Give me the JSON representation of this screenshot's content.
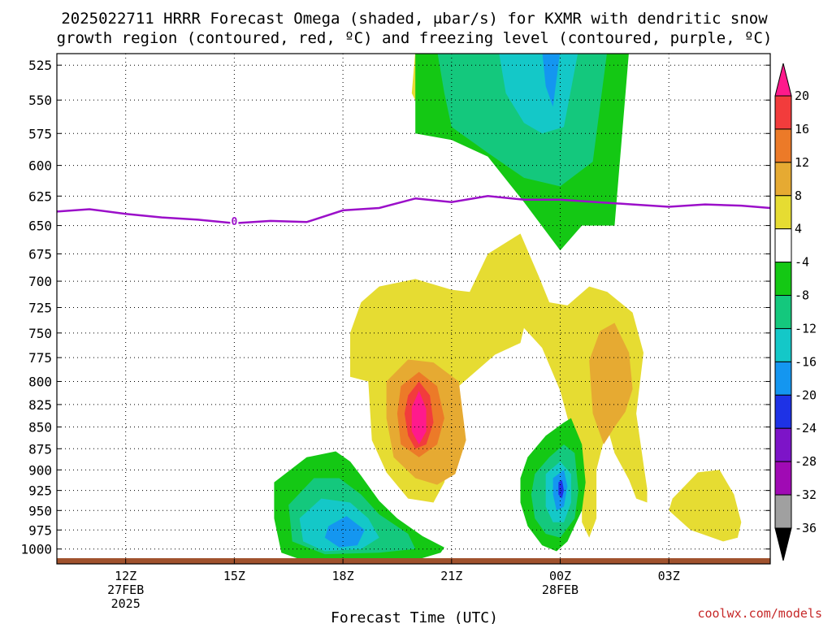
{
  "title_line1": "2025022711 HRRR Forecast Omega (shaded, μbar/s) for KXMR with dendritic snow",
  "title_line2": "growth region (contoured, red, ºC) and freezing level (contoured, purple, ºC)",
  "credit": "coolwx.com/models",
  "chart_data": {
    "type": "contour",
    "title": "2025022711 HRRR Forecast Omega (shaded, μbar/s) for KXMR with dendritic snow growth region (contoured, red, ºC) and freezing level (contoured, purple, ºC)",
    "xlabel": "Forecast Time (UTC)",
    "ylabel": "",
    "y_scale": "log",
    "ylim": [
      1020,
      517
    ],
    "xlim": [
      10.1,
      29.8
    ],
    "y_ticks": [
      525,
      550,
      575,
      600,
      625,
      650,
      675,
      700,
      725,
      750,
      775,
      800,
      825,
      850,
      875,
      900,
      925,
      950,
      975,
      1000
    ],
    "x_ticks": [
      {
        "hour": 12,
        "label": "12Z",
        "sub1": "27FEB",
        "sub2": "2025"
      },
      {
        "hour": 15,
        "label": "15Z",
        "sub1": "",
        "sub2": ""
      },
      {
        "hour": 18,
        "label": "18Z",
        "sub1": "",
        "sub2": ""
      },
      {
        "hour": 21,
        "label": "21Z",
        "sub1": "",
        "sub2": ""
      },
      {
        "hour": 24,
        "label": "00Z",
        "sub1": "28FEB",
        "sub2": ""
      },
      {
        "hour": 27,
        "label": "03Z",
        "sub1": "",
        "sub2": ""
      }
    ],
    "grid": true,
    "colorbar": {
      "labels": [
        "20",
        "16",
        "12",
        "8",
        "4",
        "-4",
        "-8",
        "-12",
        "-16",
        "-20",
        "-24",
        "-28",
        "-32",
        "-36"
      ],
      "colors": [
        "#ff1a8c",
        "#f23c3c",
        "#ec7a28",
        "#e6aa32",
        "#e6dc32",
        "#ffffff",
        "#14c814",
        "#14c87d",
        "#14c8c8",
        "#1496f0",
        "#1e32e6",
        "#7d14c8",
        "#a00ab4",
        "#a0a0a0",
        "#000000"
      ]
    },
    "omega_regions": [
      {
        "level": 4,
        "color": "#e6dc32",
        "points": [
          [
            20.0,
            515
          ],
          [
            20.5,
            515
          ],
          [
            20.2,
            561
          ],
          [
            19.9,
            545
          ]
        ]
      },
      {
        "level": -4,
        "color": "#14c814",
        "points": [
          [
            20.0,
            515
          ],
          [
            25.9,
            515
          ],
          [
            25.5,
            650
          ],
          [
            24.6,
            650
          ],
          [
            24.0,
            672
          ],
          [
            23.0,
            630
          ],
          [
            22.6,
            615
          ],
          [
            22.0,
            593
          ],
          [
            21.0,
            580
          ],
          [
            20.0,
            575
          ]
        ]
      },
      {
        "level": -8,
        "color": "#14c87d",
        "points": [
          [
            20.6,
            515
          ],
          [
            25.3,
            515
          ],
          [
            24.9,
            597
          ],
          [
            24.0,
            617
          ],
          [
            23.0,
            610
          ],
          [
            22.0,
            590
          ],
          [
            21.0,
            570
          ],
          [
            20.8,
            545
          ]
        ]
      },
      {
        "level": -12,
        "color": "#14c8c8",
        "points": [
          [
            22.3,
            515
          ],
          [
            24.5,
            515
          ],
          [
            24.1,
            570
          ],
          [
            23.5,
            575
          ],
          [
            23.0,
            567
          ],
          [
            22.5,
            545
          ]
        ]
      },
      {
        "level": -16,
        "color": "#1496f0",
        "points": [
          [
            23.5,
            515
          ],
          [
            24.0,
            515
          ],
          [
            23.8,
            555
          ],
          [
            23.6,
            540
          ]
        ]
      },
      {
        "level": 4,
        "color": "#e6dc32",
        "points": [
          [
            19.0,
            705
          ],
          [
            20.0,
            698
          ],
          [
            21.0,
            708
          ],
          [
            21.5,
            710
          ],
          [
            22.0,
            675
          ],
          [
            22.9,
            657
          ],
          [
            23.4,
            695
          ],
          [
            23.7,
            720
          ],
          [
            24.2,
            723
          ],
          [
            24.8,
            705
          ],
          [
            25.3,
            710
          ],
          [
            26.0,
            730
          ],
          [
            26.3,
            770
          ],
          [
            26.1,
            835
          ],
          [
            26.3,
            893
          ],
          [
            26.4,
            923
          ],
          [
            26.4,
            940
          ],
          [
            26.1,
            935
          ],
          [
            25.9,
            912
          ],
          [
            25.5,
            880
          ],
          [
            25.3,
            850
          ],
          [
            25.0,
            900
          ],
          [
            25.0,
            960
          ],
          [
            24.8,
            985
          ],
          [
            24.6,
            965
          ],
          [
            24.6,
            900
          ],
          [
            24.4,
            870
          ],
          [
            24.0,
            810
          ],
          [
            23.5,
            765
          ],
          [
            23.0,
            745
          ],
          [
            22.9,
            760
          ],
          [
            22.2,
            772
          ],
          [
            21.8,
            785
          ],
          [
            21.2,
            805
          ],
          [
            21.0,
            872
          ],
          [
            20.8,
            915
          ],
          [
            20.5,
            940
          ],
          [
            19.8,
            935
          ],
          [
            19.2,
            903
          ],
          [
            18.8,
            865
          ],
          [
            18.7,
            800
          ],
          [
            18.2,
            795
          ],
          [
            18.2,
            750
          ],
          [
            18.5,
            720
          ]
        ]
      },
      {
        "level": 4,
        "color": "#e6dc32",
        "points": [
          [
            27.1,
            935
          ],
          [
            27.8,
            903
          ],
          [
            28.4,
            900
          ],
          [
            28.8,
            930
          ],
          [
            29.0,
            965
          ],
          [
            28.9,
            985
          ],
          [
            28.5,
            990
          ],
          [
            27.6,
            975
          ],
          [
            27.0,
            950
          ]
        ]
      },
      {
        "level": 8,
        "color": "#e6aa32",
        "points": [
          [
            24.8,
            778
          ],
          [
            25.1,
            748
          ],
          [
            25.5,
            740
          ],
          [
            25.9,
            770
          ],
          [
            26.0,
            808
          ],
          [
            25.8,
            833
          ],
          [
            25.5,
            850
          ],
          [
            25.2,
            870
          ],
          [
            24.9,
            835
          ]
        ]
      },
      {
        "level": 8,
        "color": "#e6aa32",
        "points": [
          [
            19.2,
            800
          ],
          [
            19.8,
            777
          ],
          [
            20.5,
            780
          ],
          [
            21.2,
            800
          ],
          [
            21.4,
            865
          ],
          [
            21.1,
            905
          ],
          [
            20.6,
            918
          ],
          [
            20.0,
            910
          ],
          [
            19.4,
            885
          ],
          [
            19.2,
            840
          ]
        ]
      },
      {
        "level": 12,
        "color": "#ec7a28",
        "points": [
          [
            19.6,
            805
          ],
          [
            20.1,
            790
          ],
          [
            20.6,
            805
          ],
          [
            20.8,
            840
          ],
          [
            20.6,
            870
          ],
          [
            20.1,
            885
          ],
          [
            19.6,
            870
          ],
          [
            19.5,
            835
          ]
        ]
      },
      {
        "level": 16,
        "color": "#f23c3c",
        "points": [
          [
            19.8,
            815
          ],
          [
            20.1,
            800
          ],
          [
            20.4,
            815
          ],
          [
            20.5,
            845
          ],
          [
            20.3,
            870
          ],
          [
            20.0,
            875
          ],
          [
            19.8,
            860
          ],
          [
            19.7,
            835
          ]
        ]
      },
      {
        "level": 20,
        "color": "#ff1a8c",
        "points": [
          [
            19.9,
            828
          ],
          [
            20.1,
            810
          ],
          [
            20.3,
            830
          ],
          [
            20.3,
            855
          ],
          [
            20.1,
            870
          ],
          [
            19.9,
            855
          ]
        ]
      },
      {
        "level": -4,
        "color": "#14c814",
        "points": [
          [
            16.1,
            915
          ],
          [
            17.0,
            885
          ],
          [
            17.8,
            878
          ],
          [
            18.2,
            890
          ],
          [
            18.5,
            907
          ],
          [
            19.0,
            938
          ],
          [
            19.5,
            960
          ],
          [
            20.2,
            983
          ],
          [
            20.8,
            998
          ],
          [
            20.7,
            1005
          ],
          [
            20.0,
            1015
          ],
          [
            17.0,
            1017
          ],
          [
            16.3,
            1005
          ],
          [
            16.1,
            960
          ]
        ]
      },
      {
        "level": -8,
        "color": "#14c87d",
        "points": [
          [
            16.5,
            943
          ],
          [
            17.2,
            910
          ],
          [
            17.9,
            910
          ],
          [
            18.5,
            930
          ],
          [
            19.0,
            955
          ],
          [
            19.8,
            980
          ],
          [
            20.0,
            1000
          ],
          [
            19.0,
            1005
          ],
          [
            17.5,
            1007
          ],
          [
            16.6,
            990
          ]
        ]
      },
      {
        "level": -12,
        "color": "#14c8c8",
        "points": [
          [
            16.8,
            960
          ],
          [
            17.4,
            935
          ],
          [
            18.2,
            940
          ],
          [
            18.7,
            960
          ],
          [
            19.0,
            985
          ],
          [
            18.5,
            1000
          ],
          [
            17.5,
            1003
          ],
          [
            16.9,
            990
          ]
        ]
      },
      {
        "level": -16,
        "color": "#1496f0",
        "points": [
          [
            17.6,
            970
          ],
          [
            18.1,
            957
          ],
          [
            18.6,
            975
          ],
          [
            18.4,
            995
          ],
          [
            17.9,
            998
          ],
          [
            17.5,
            985
          ]
        ]
      },
      {
        "level": -4,
        "color": "#14c814",
        "points": [
          [
            23.1,
            885
          ],
          [
            23.6,
            860
          ],
          [
            24.1,
            845
          ],
          [
            24.3,
            840
          ],
          [
            24.6,
            870
          ],
          [
            24.7,
            915
          ],
          [
            24.6,
            950
          ],
          [
            24.2,
            990
          ],
          [
            23.9,
            1003
          ],
          [
            23.5,
            995
          ],
          [
            23.1,
            970
          ],
          [
            22.9,
            940
          ],
          [
            22.9,
            910
          ]
        ]
      },
      {
        "level": -8,
        "color": "#14c87d",
        "points": [
          [
            23.3,
            905
          ],
          [
            23.7,
            885
          ],
          [
            24.1,
            870
          ],
          [
            24.4,
            880
          ],
          [
            24.5,
            925
          ],
          [
            24.4,
            960
          ],
          [
            24.0,
            985
          ],
          [
            23.6,
            980
          ],
          [
            23.3,
            960
          ],
          [
            23.2,
            930
          ]
        ]
      },
      {
        "level": -12,
        "color": "#14c8c8",
        "points": [
          [
            23.6,
            905
          ],
          [
            24.0,
            890
          ],
          [
            24.3,
            905
          ],
          [
            24.3,
            940
          ],
          [
            24.1,
            965
          ],
          [
            23.8,
            965
          ],
          [
            23.6,
            945
          ]
        ]
      },
      {
        "level": -16,
        "color": "#1496f0",
        "points": [
          [
            23.8,
            910
          ],
          [
            24.1,
            900
          ],
          [
            24.2,
            920
          ],
          [
            24.1,
            945
          ],
          [
            23.9,
            950
          ],
          [
            23.8,
            930
          ]
        ]
      },
      {
        "level": -20,
        "color": "#1e32e6",
        "points": [
          [
            23.95,
            915
          ],
          [
            24.05,
            912
          ],
          [
            24.1,
            925
          ],
          [
            24.05,
            935
          ],
          [
            23.95,
            930
          ]
        ]
      }
    ],
    "freezing_level": {
      "name": "0",
      "color": "#9b0fc9",
      "points": [
        [
          10.1,
          638
        ],
        [
          11.0,
          636
        ],
        [
          12.0,
          640
        ],
        [
          13.0,
          643
        ],
        [
          14.0,
          645
        ],
        [
          15.0,
          648
        ],
        [
          16.0,
          646
        ],
        [
          17.0,
          647
        ],
        [
          18.0,
          637
        ],
        [
          19.0,
          635
        ],
        [
          20.0,
          627
        ],
        [
          21.0,
          630
        ],
        [
          22.0,
          625
        ],
        [
          23.0,
          628
        ],
        [
          24.0,
          628
        ],
        [
          25.0,
          630
        ],
        [
          26.0,
          632
        ],
        [
          27.0,
          634
        ],
        [
          28.0,
          632
        ],
        [
          29.0,
          633
        ],
        [
          29.8,
          635
        ]
      ]
    },
    "terrain_color": "#a0522d"
  }
}
